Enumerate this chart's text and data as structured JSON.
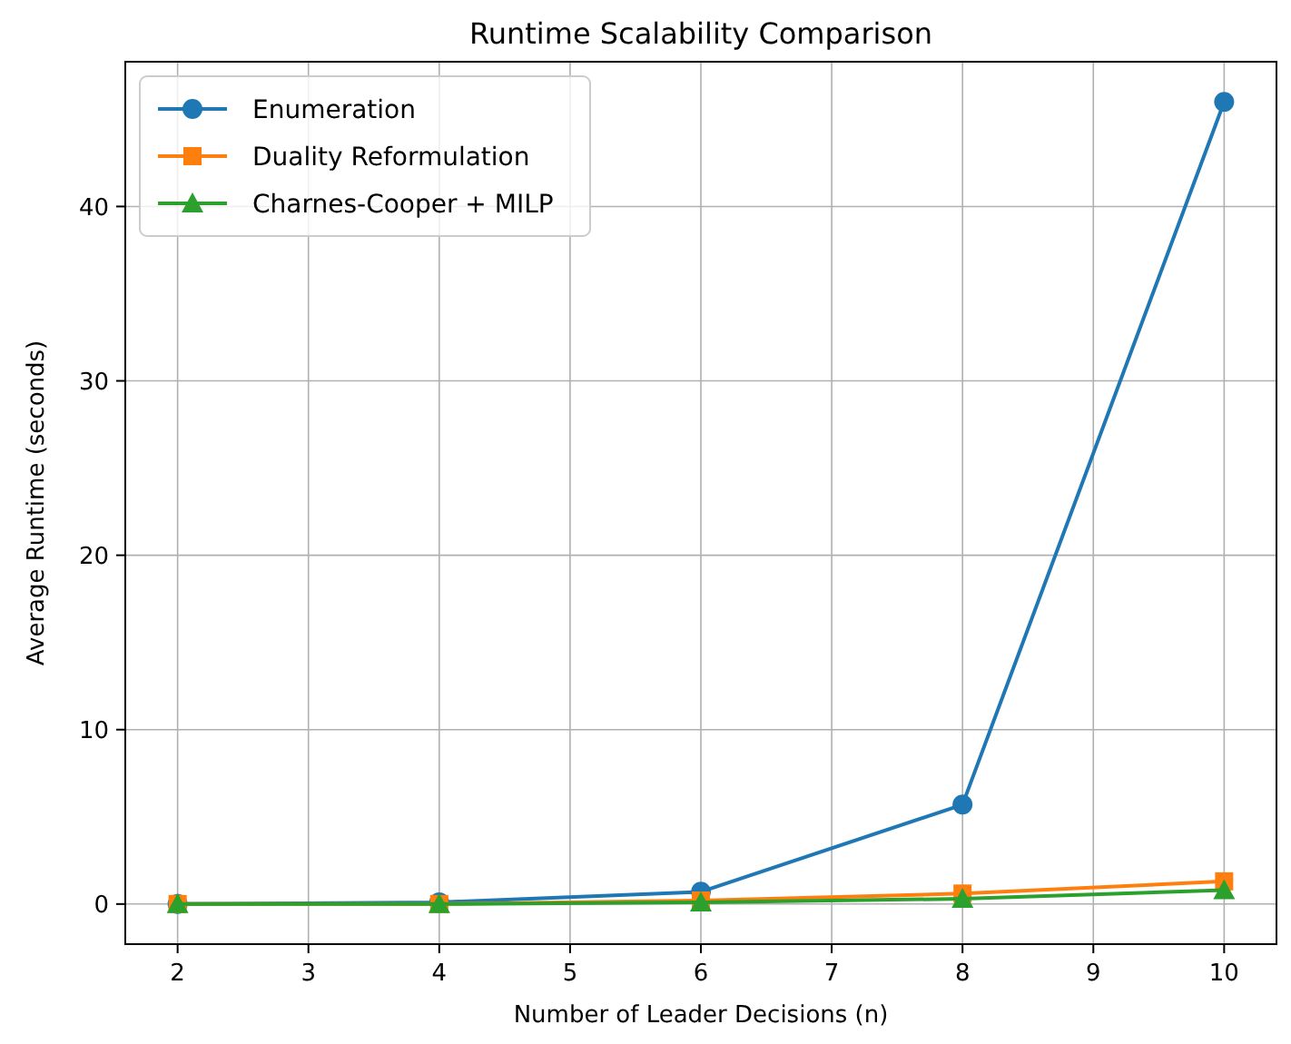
{
  "chart_data": {
    "type": "line",
    "title": "Runtime Scalability Comparison",
    "xlabel": "Number of Leader Decisions (n)",
    "ylabel": "Average Runtime (seconds)",
    "x": [
      2,
      4,
      6,
      8,
      10
    ],
    "series": [
      {
        "name": "Enumeration",
        "color": "#1f77b4",
        "marker": "circle",
        "values": [
          0,
          0.1,
          0.7,
          5.7,
          46
        ]
      },
      {
        "name": "Duality Reformulation",
        "color": "#ff7f0e",
        "marker": "square",
        "values": [
          0,
          0,
          0.2,
          0.6,
          1.3
        ]
      },
      {
        "name": "Charnes-Cooper + MILP",
        "color": "#2ca02c",
        "marker": "triangle",
        "values": [
          0,
          0,
          0.1,
          0.3,
          0.8
        ]
      }
    ],
    "xlim": [
      1.6,
      10.4
    ],
    "xticks": [
      2,
      3,
      4,
      5,
      6,
      7,
      8,
      9,
      10
    ],
    "ylim": [
      -2.3,
      48.3
    ],
    "yticks": [
      0,
      10,
      20,
      30,
      40
    ],
    "grid": true,
    "legend": "top left",
    "line_style": "solid"
  }
}
